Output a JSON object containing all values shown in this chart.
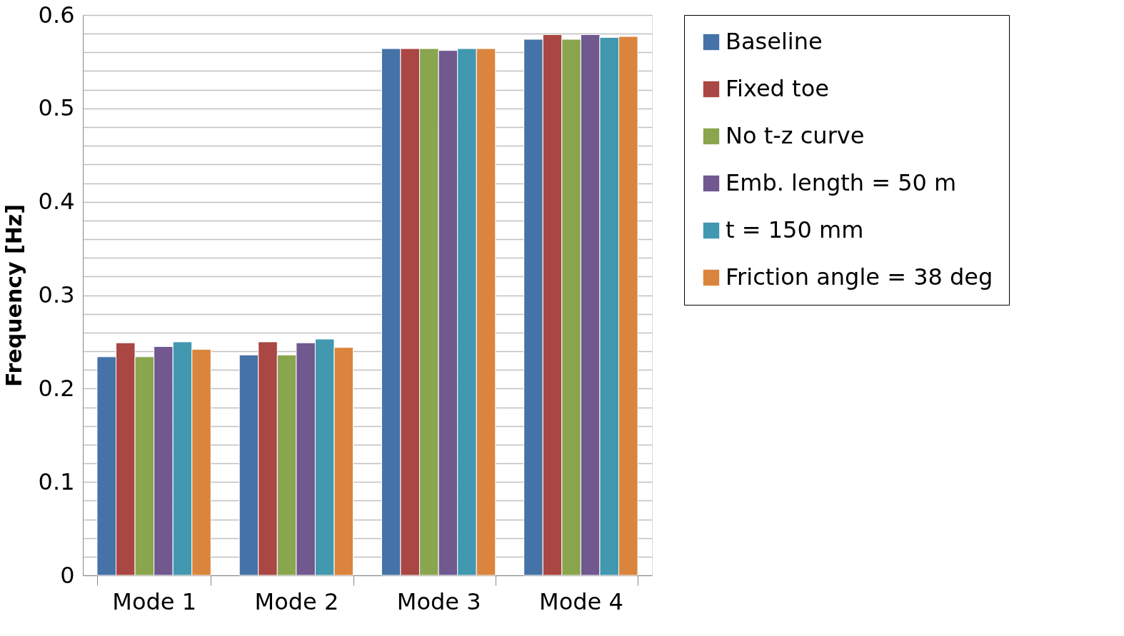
{
  "chart_data": {
    "type": "bar",
    "ylabel": "Frequency [Hz]",
    "categories": [
      "Mode 1",
      "Mode 2",
      "Mode 3",
      "Mode 4"
    ],
    "series": [
      {
        "name": "Baseline",
        "color": "#4572a7",
        "values": [
          0.234,
          0.236,
          0.564,
          0.574
        ]
      },
      {
        "name": "Fixed toe",
        "color": "#aa4643",
        "values": [
          0.249,
          0.25,
          0.564,
          0.579
        ]
      },
      {
        "name": "No t-z curve",
        "color": "#89a54e",
        "values": [
          0.234,
          0.236,
          0.564,
          0.574
        ]
      },
      {
        "name": "Emb. length = 50 m",
        "color": "#71588f",
        "values": [
          0.245,
          0.249,
          0.562,
          0.579
        ]
      },
      {
        "name": "t = 150 mm",
        "color": "#4198af",
        "values": [
          0.25,
          0.253,
          0.564,
          0.576
        ]
      },
      {
        "name": "Friction angle = 38 deg",
        "color": "#db843d",
        "values": [
          0.242,
          0.244,
          0.564,
          0.577
        ]
      }
    ],
    "ylim": [
      0,
      0.6
    ],
    "yticks": [
      0,
      {
        "value": 0.02,
        "label": null
      },
      {
        "value": 0.04,
        "label": null
      },
      {
        "value": 0.06,
        "label": null
      },
      {
        "value": 0.08,
        "label": null
      },
      0.1,
      {
        "value": 0.12,
        "label": null
      },
      {
        "value": 0.14,
        "label": null
      },
      {
        "value": 0.16,
        "label": null
      },
      {
        "value": 0.18,
        "label": null
      },
      0.2,
      {
        "value": 0.22,
        "label": null
      },
      {
        "value": 0.24,
        "label": null
      },
      {
        "value": 0.26,
        "label": null
      },
      {
        "value": 0.28,
        "label": null
      },
      0.3,
      {
        "value": 0.32,
        "label": null
      },
      {
        "value": 0.34,
        "label": null
      },
      {
        "value": 0.36,
        "label": null
      },
      {
        "value": 0.38,
        "label": null
      },
      0.4,
      {
        "value": 0.42,
        "label": null
      },
      {
        "value": 0.44,
        "label": null
      },
      {
        "value": 0.46,
        "label": null
      },
      {
        "value": 0.48,
        "label": null
      },
      0.5,
      {
        "value": 0.52,
        "label": null
      },
      {
        "value": 0.54,
        "label": null
      },
      {
        "value": 0.56,
        "label": null
      },
      {
        "value": 0.58,
        "label": null
      },
      0.6
    ],
    "grid": true,
    "legend": "right"
  }
}
